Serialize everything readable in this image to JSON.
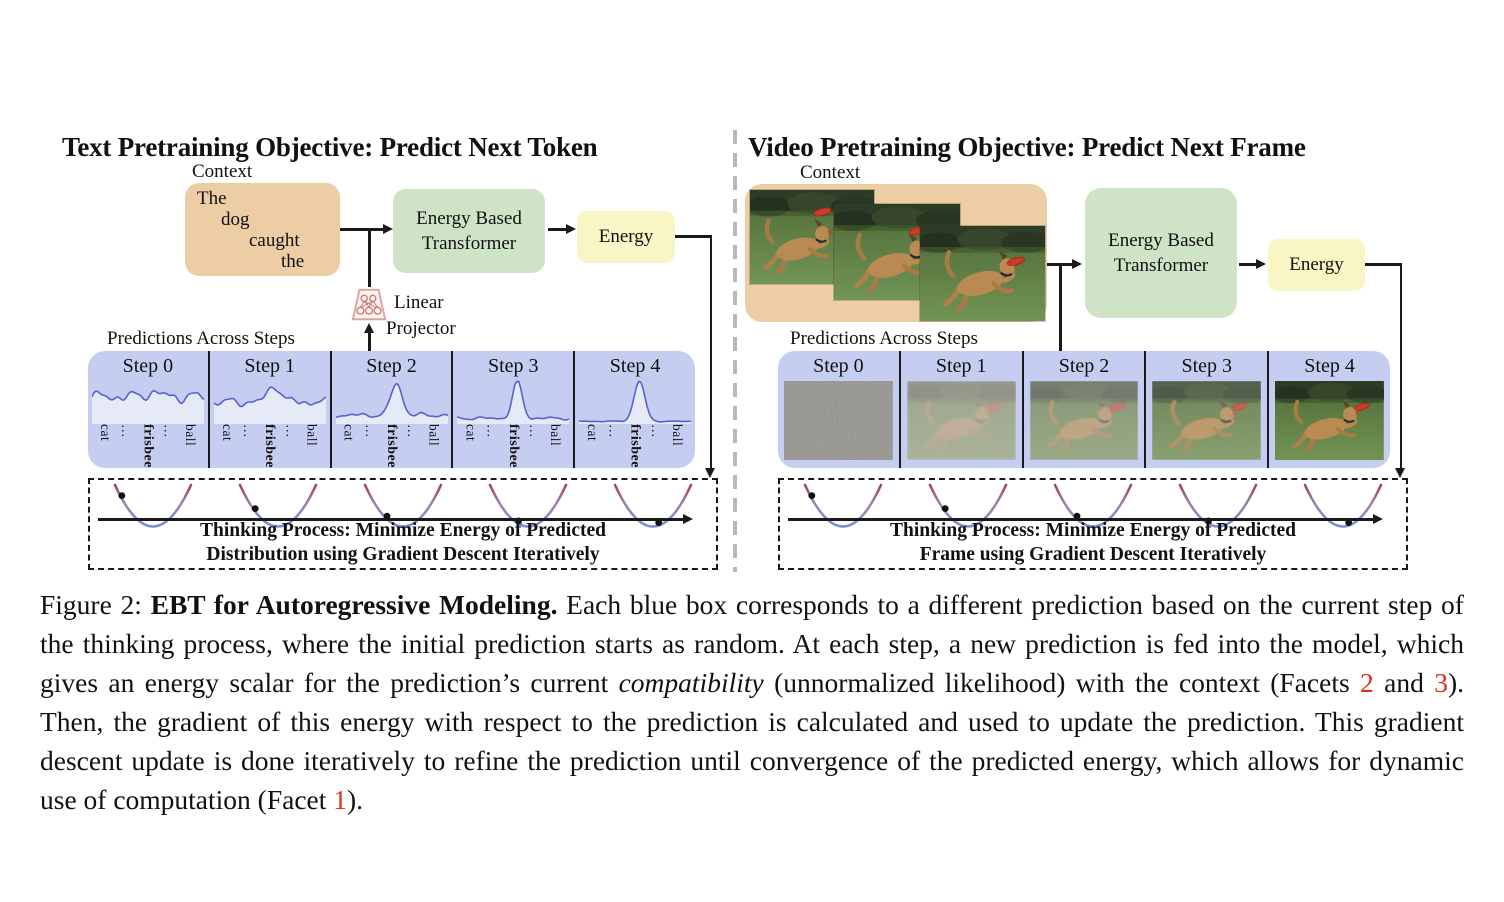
{
  "colors": {
    "context_box": "#eccda4",
    "model_box": "#cfe3c6",
    "energy_box": "#f8f6c5",
    "predictions_box": "#c5cdf0",
    "line": "#1a1a1a",
    "curve": "#5a61cf",
    "curve_fill": "#e8edf6",
    "accent_red": "#db331a",
    "parabola_top": "#a34553",
    "parabola_bottom": "#7b8fd2",
    "divider": "#b9b9b9"
  },
  "left_panel": {
    "title": "Text Pretraining Objective: Predict Next Token",
    "context_label": "Context",
    "context_tokens": [
      "The",
      "dog",
      "caught",
      "the"
    ],
    "model_lines": [
      "Energy Based",
      "Transformer"
    ],
    "energy_label": "Energy",
    "projector_lines": [
      "Linear",
      "Projector"
    ],
    "predictions_label": "Predictions Across Steps",
    "steps": [
      {
        "label": "Step 0",
        "base": 0.62,
        "noise": 0.16,
        "peak": 0.1,
        "pw": 0.06
      },
      {
        "label": "Step 1",
        "base": 0.5,
        "noise": 0.12,
        "peak": 0.38,
        "pw": 0.055
      },
      {
        "label": "Step 2",
        "base": 0.2,
        "noise": 0.06,
        "peak": 0.72,
        "pw": 0.05
      },
      {
        "label": "Step 3",
        "base": 0.13,
        "noise": 0.04,
        "peak": 0.85,
        "pw": 0.042
      },
      {
        "label": "Step 4",
        "base": 0.06,
        "noise": 0.012,
        "peak": 0.92,
        "pw": 0.048
      }
    ],
    "thinking": {
      "line1": "Thinking Process: Minimize Energy of Predicted",
      "line2": "Distribution using Gradient Descent Iteratively"
    }
  },
  "right_panel": {
    "title": "Video Pretraining Objective: Predict Next Frame",
    "context_label": "Context",
    "model_lines": [
      "Energy Based",
      "Transformer"
    ],
    "energy_label": "Energy",
    "predictions_label": "Predictions Across Steps",
    "steps": [
      {
        "label": "Step 0",
        "kind": "noise"
      },
      {
        "label": "Step 1",
        "kind": "scene",
        "veil": 0.62,
        "grain": 0.3,
        "blur": 1.3
      },
      {
        "label": "Step 2",
        "kind": "scene",
        "veil": 0.45,
        "grain": 0.14,
        "blur": 0.8
      },
      {
        "label": "Step 3",
        "kind": "scene",
        "veil": 0.26,
        "grain": 0.06,
        "blur": 0.4
      },
      {
        "label": "Step 4",
        "kind": "scene",
        "veil": 0.0,
        "grain": 0.0,
        "blur": 0.0
      }
    ],
    "thinking": {
      "line1": "Thinking Process: Minimize Energy of Predicted",
      "line2": "Frame using Gradient Descent Iteratively"
    }
  },
  "shared": {
    "vocab": [
      "cat",
      "…",
      "frisbee",
      "…",
      "ball"
    ],
    "vocab_bold_index": 2,
    "dot_t": [
      -0.82,
      -0.6,
      -0.42,
      -0.25,
      0.15
    ]
  },
  "caption": {
    "segments": [
      {
        "text": "Figure 2: ",
        "style": "n"
      },
      {
        "text": "EBT for Autoregressive Modeling.",
        "style": "b"
      },
      {
        "text": " Each blue box corresponds to a different prediction based on the current step of the thinking process, where the initial prediction starts as random. At each step, a new prediction is fed into the model, which gives an energy scalar for the prediction’s current ",
        "style": "n"
      },
      {
        "text": "compatibility",
        "style": "i"
      },
      {
        "text": " (unnormalized likelihood) with the context (Facets ",
        "style": "n"
      },
      {
        "text": "2",
        "style": "red"
      },
      {
        "text": " and ",
        "style": "n"
      },
      {
        "text": "3",
        "style": "red"
      },
      {
        "text": "). Then, the gradient of this energy with respect to the prediction is calculated and used to update the prediction.  This gradient descent update is done iteratively to refine the prediction until convergence of the predicted energy, which allows for dynamic use of computation (Facet ",
        "style": "n"
      },
      {
        "text": "1",
        "style": "red"
      },
      {
        "text": ").",
        "style": "n"
      }
    ]
  }
}
